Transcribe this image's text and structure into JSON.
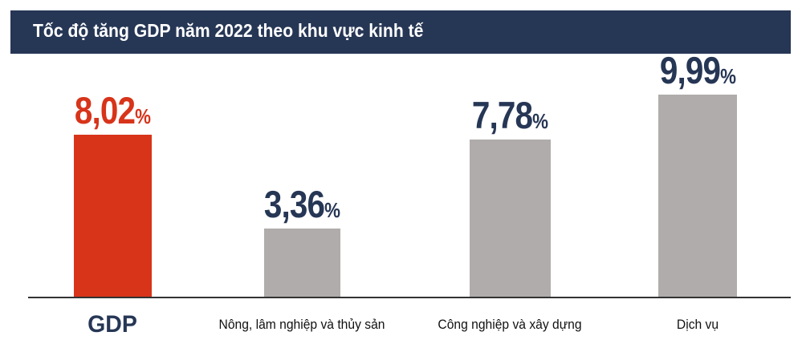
{
  "chart_data": {
    "type": "bar",
    "title": "Tốc độ tăng GDP năm 2022 theo khu vực kinh tế",
    "categories": [
      "GDP",
      "Nông, lâm nghiệp và thủy sản",
      "Công nghiệp và xây dựng",
      "Dịch vụ"
    ],
    "values": [
      8.02,
      3.36,
      7.78,
      9.99
    ],
    "value_labels": [
      "8,02",
      "3,36",
      "7,78",
      "9,99"
    ],
    "unit": "%",
    "xlabel": "",
    "ylabel": "",
    "ylim": [
      0,
      10
    ],
    "grid": false,
    "colors": {
      "highlight_bar": "#d7341a",
      "bar": "#b0acab",
      "highlight_label": "#d7341a",
      "label": "#263655",
      "header": "#263655"
    }
  }
}
